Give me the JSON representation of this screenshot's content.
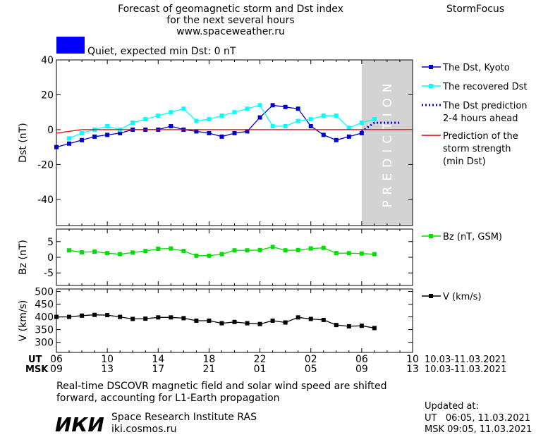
{
  "header": {
    "title_line1": "Forecast of geomagnetic storm and Dst index",
    "title_line2": "for the next several hours",
    "title_line3": "www.spaceweather.ru",
    "brand": "StormFocus",
    "status_text": "Quiet, expected min Dst: 0 nT",
    "status_color": "#0000ff"
  },
  "footer": {
    "ut_label": "UT",
    "msk_label": "MSK",
    "note_line1": "Real-time DSCOVR magnetic field and solar wind speed are shifted",
    "note_line2": "forward, accounting for L1-Earth propagation",
    "institute_logo": "ИКИ",
    "institute_name": "Space Research Institute RAS",
    "institute_url": "iki.cosmos.ru",
    "updated_label": "Updated at:",
    "updated_ut": "UT   06:05, 11.03.2021",
    "updated_msk": "MSK 09:05, 11.03.2021"
  },
  "chart_data": [
    {
      "type": "line",
      "panel": "dst",
      "ylabel": "Dst (nT)",
      "ylim": [
        -55,
        40
      ],
      "yticks": [
        40,
        20,
        0,
        -20,
        -40
      ],
      "xlim": [
        6,
        34
      ],
      "prediction_label": "PREDICTION",
      "prediction_start": 30,
      "series": [
        {
          "name": "The Dst, Kyoto",
          "color": "#0000cc",
          "marker": "square",
          "x": [
            6,
            7,
            8,
            9,
            10,
            11,
            12,
            13,
            14,
            15,
            16,
            17,
            18,
            19,
            20,
            21,
            22,
            23,
            24,
            25,
            26,
            27,
            28,
            29,
            30
          ],
          "y": [
            -10,
            -8,
            -6,
            -4,
            -3,
            -2,
            0,
            0,
            0,
            2,
            0,
            -1,
            -2,
            -4,
            -2,
            -1,
            7,
            14,
            13,
            12,
            2,
            -3,
            -6,
            -4,
            -2
          ]
        },
        {
          "name": "The recovered Dst",
          "color": "#00ffff",
          "marker": "square",
          "x": [
            7,
            8,
            9,
            10,
            11,
            12,
            13,
            14,
            15,
            16,
            17,
            18,
            19,
            20,
            21,
            22,
            23,
            24,
            25,
            26,
            27,
            28,
            29,
            30,
            31
          ],
          "y": [
            -5,
            -2,
            0,
            2,
            0,
            4,
            6,
            8,
            10,
            12,
            5,
            6,
            8,
            10,
            12,
            14,
            2,
            2,
            5,
            6,
            8,
            8,
            1,
            4,
            6
          ]
        },
        {
          "name": "The Dst prediction\n2-4 hours ahead",
          "color": "#0000ff",
          "style": "dotted",
          "x": [
            30,
            31,
            32,
            33
          ],
          "y": [
            -1,
            4,
            4,
            4
          ]
        },
        {
          "name": "Prediction of the\nstorm strength\n(min Dst)",
          "color": "#dd0000",
          "x": [
            6,
            7,
            8,
            9,
            10,
            11,
            12,
            13,
            14,
            15,
            16,
            17,
            18,
            19,
            20,
            21,
            22,
            23,
            24,
            25,
            26,
            27,
            28,
            29,
            30,
            31,
            32,
            33,
            34
          ],
          "y": [
            -2,
            -1,
            0,
            0,
            0,
            0,
            0,
            0,
            0,
            0,
            0,
            0,
            0,
            0,
            0,
            0,
            0,
            0,
            0,
            0,
            0,
            0,
            0,
            0,
            0,
            0,
            0,
            0,
            0
          ]
        }
      ]
    },
    {
      "type": "line",
      "panel": "bz",
      "ylabel": "Bz (nT)",
      "ylim": [
        -9,
        9
      ],
      "yticks": [
        5,
        0,
        -5
      ],
      "xlim": [
        6,
        34
      ],
      "series": [
        {
          "name": "Bz (nT, GSM)",
          "color": "#00dd00",
          "marker": "square",
          "x": [
            7,
            8,
            9,
            10,
            11,
            12,
            13,
            14,
            15,
            16,
            17,
            18,
            19,
            20,
            21,
            22,
            23,
            24,
            25,
            26,
            27,
            28,
            29,
            30,
            31
          ],
          "y": [
            2.2,
            1.6,
            1.8,
            1.3,
            1.0,
            1.5,
            2.0,
            2.7,
            2.8,
            2.0,
            0.5,
            0.5,
            1.0,
            2.2,
            2.2,
            2.3,
            3.3,
            2.2,
            2.3,
            2.8,
            3.0,
            1.3,
            1.3,
            1.2,
            1.0
          ]
        }
      ]
    },
    {
      "type": "line",
      "panel": "v",
      "ylabel": "V (km/s)",
      "ylim": [
        260,
        510
      ],
      "yticks": [
        500,
        450,
        400,
        350,
        300
      ],
      "xlim": [
        6,
        34
      ],
      "x_ticks_ut": [
        "06",
        "10",
        "14",
        "18",
        "22",
        "02",
        "06",
        "10"
      ],
      "x_ticks_msk": [
        "09",
        "13",
        "17",
        "21",
        "01",
        "05",
        "09",
        "13"
      ],
      "x_tick_positions": [
        6,
        10,
        14,
        18,
        22,
        26,
        30,
        34
      ],
      "date_range": "10.03-11.03.2021",
      "series": [
        {
          "name": "V (km/s)",
          "color": "#000000",
          "marker": "square",
          "x": [
            6,
            7,
            8,
            9,
            10,
            11,
            12,
            13,
            14,
            15,
            16,
            17,
            18,
            19,
            20,
            21,
            22,
            23,
            24,
            25,
            26,
            27,
            28,
            29,
            30,
            31
          ],
          "y": [
            400,
            400,
            405,
            408,
            407,
            400,
            392,
            393,
            398,
            398,
            395,
            385,
            385,
            375,
            380,
            375,
            372,
            385,
            378,
            398,
            392,
            388,
            368,
            363,
            365,
            356
          ]
        }
      ]
    }
  ]
}
